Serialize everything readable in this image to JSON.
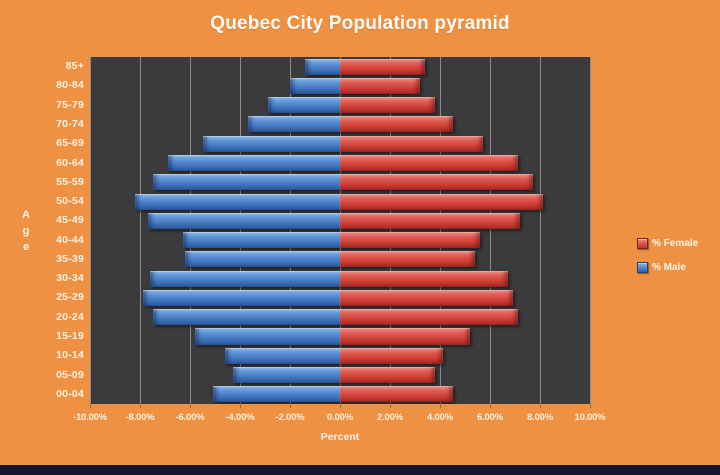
{
  "title": "Quebec City Population pyramid",
  "colors": {
    "background": "#EF9142",
    "plot_background": "#3B3B3D",
    "male_bar": "#4C84CC",
    "female_bar": "#D9453E",
    "gridline": "#D2CDC6",
    "text": "#FEF3E4",
    "footer_bar": "#16162B"
  },
  "chart_data": {
    "type": "bar",
    "subtype": "population-pyramid (horizontal, male left / female right)",
    "title": "Quebec City Population pyramid",
    "xlabel": "Percent",
    "ylabel": "Age",
    "xlim": [
      -10,
      10
    ],
    "grid": true,
    "legend_position": "right",
    "x_ticks": [
      "-10.00%",
      "-8.00%",
      "-6.00%",
      "-4.00%",
      "-2.00%",
      "0.00%",
      "2.00%",
      "4.00%",
      "6.00%",
      "8.00%",
      "10.00%"
    ],
    "categories_top_to_bottom": [
      "85+",
      "80-84",
      "75-79",
      "70-74",
      "65-69",
      "60-64",
      "55-59",
      "50-54",
      "45-49",
      "40-44",
      "35-39",
      "30-34",
      "25-29",
      "20-24",
      "15-19",
      "10-14",
      "05-09",
      "00-04"
    ],
    "series": [
      {
        "name": "% Female",
        "side": "right",
        "color": "#D9453E",
        "values_pct": [
          3.4,
          3.2,
          3.8,
          4.5,
          5.7,
          7.1,
          7.7,
          8.1,
          7.2,
          5.6,
          5.4,
          6.7,
          6.9,
          7.1,
          5.2,
          4.1,
          3.8,
          4.5
        ]
      },
      {
        "name": "% Male",
        "side": "left",
        "plotted_as": "negative values",
        "color": "#4C84CC",
        "values_pct": [
          1.4,
          2.0,
          2.9,
          3.7,
          5.5,
          6.9,
          7.5,
          8.2,
          7.7,
          6.3,
          6.2,
          7.6,
          7.9,
          7.5,
          5.8,
          4.6,
          4.3,
          5.1
        ]
      }
    ]
  }
}
